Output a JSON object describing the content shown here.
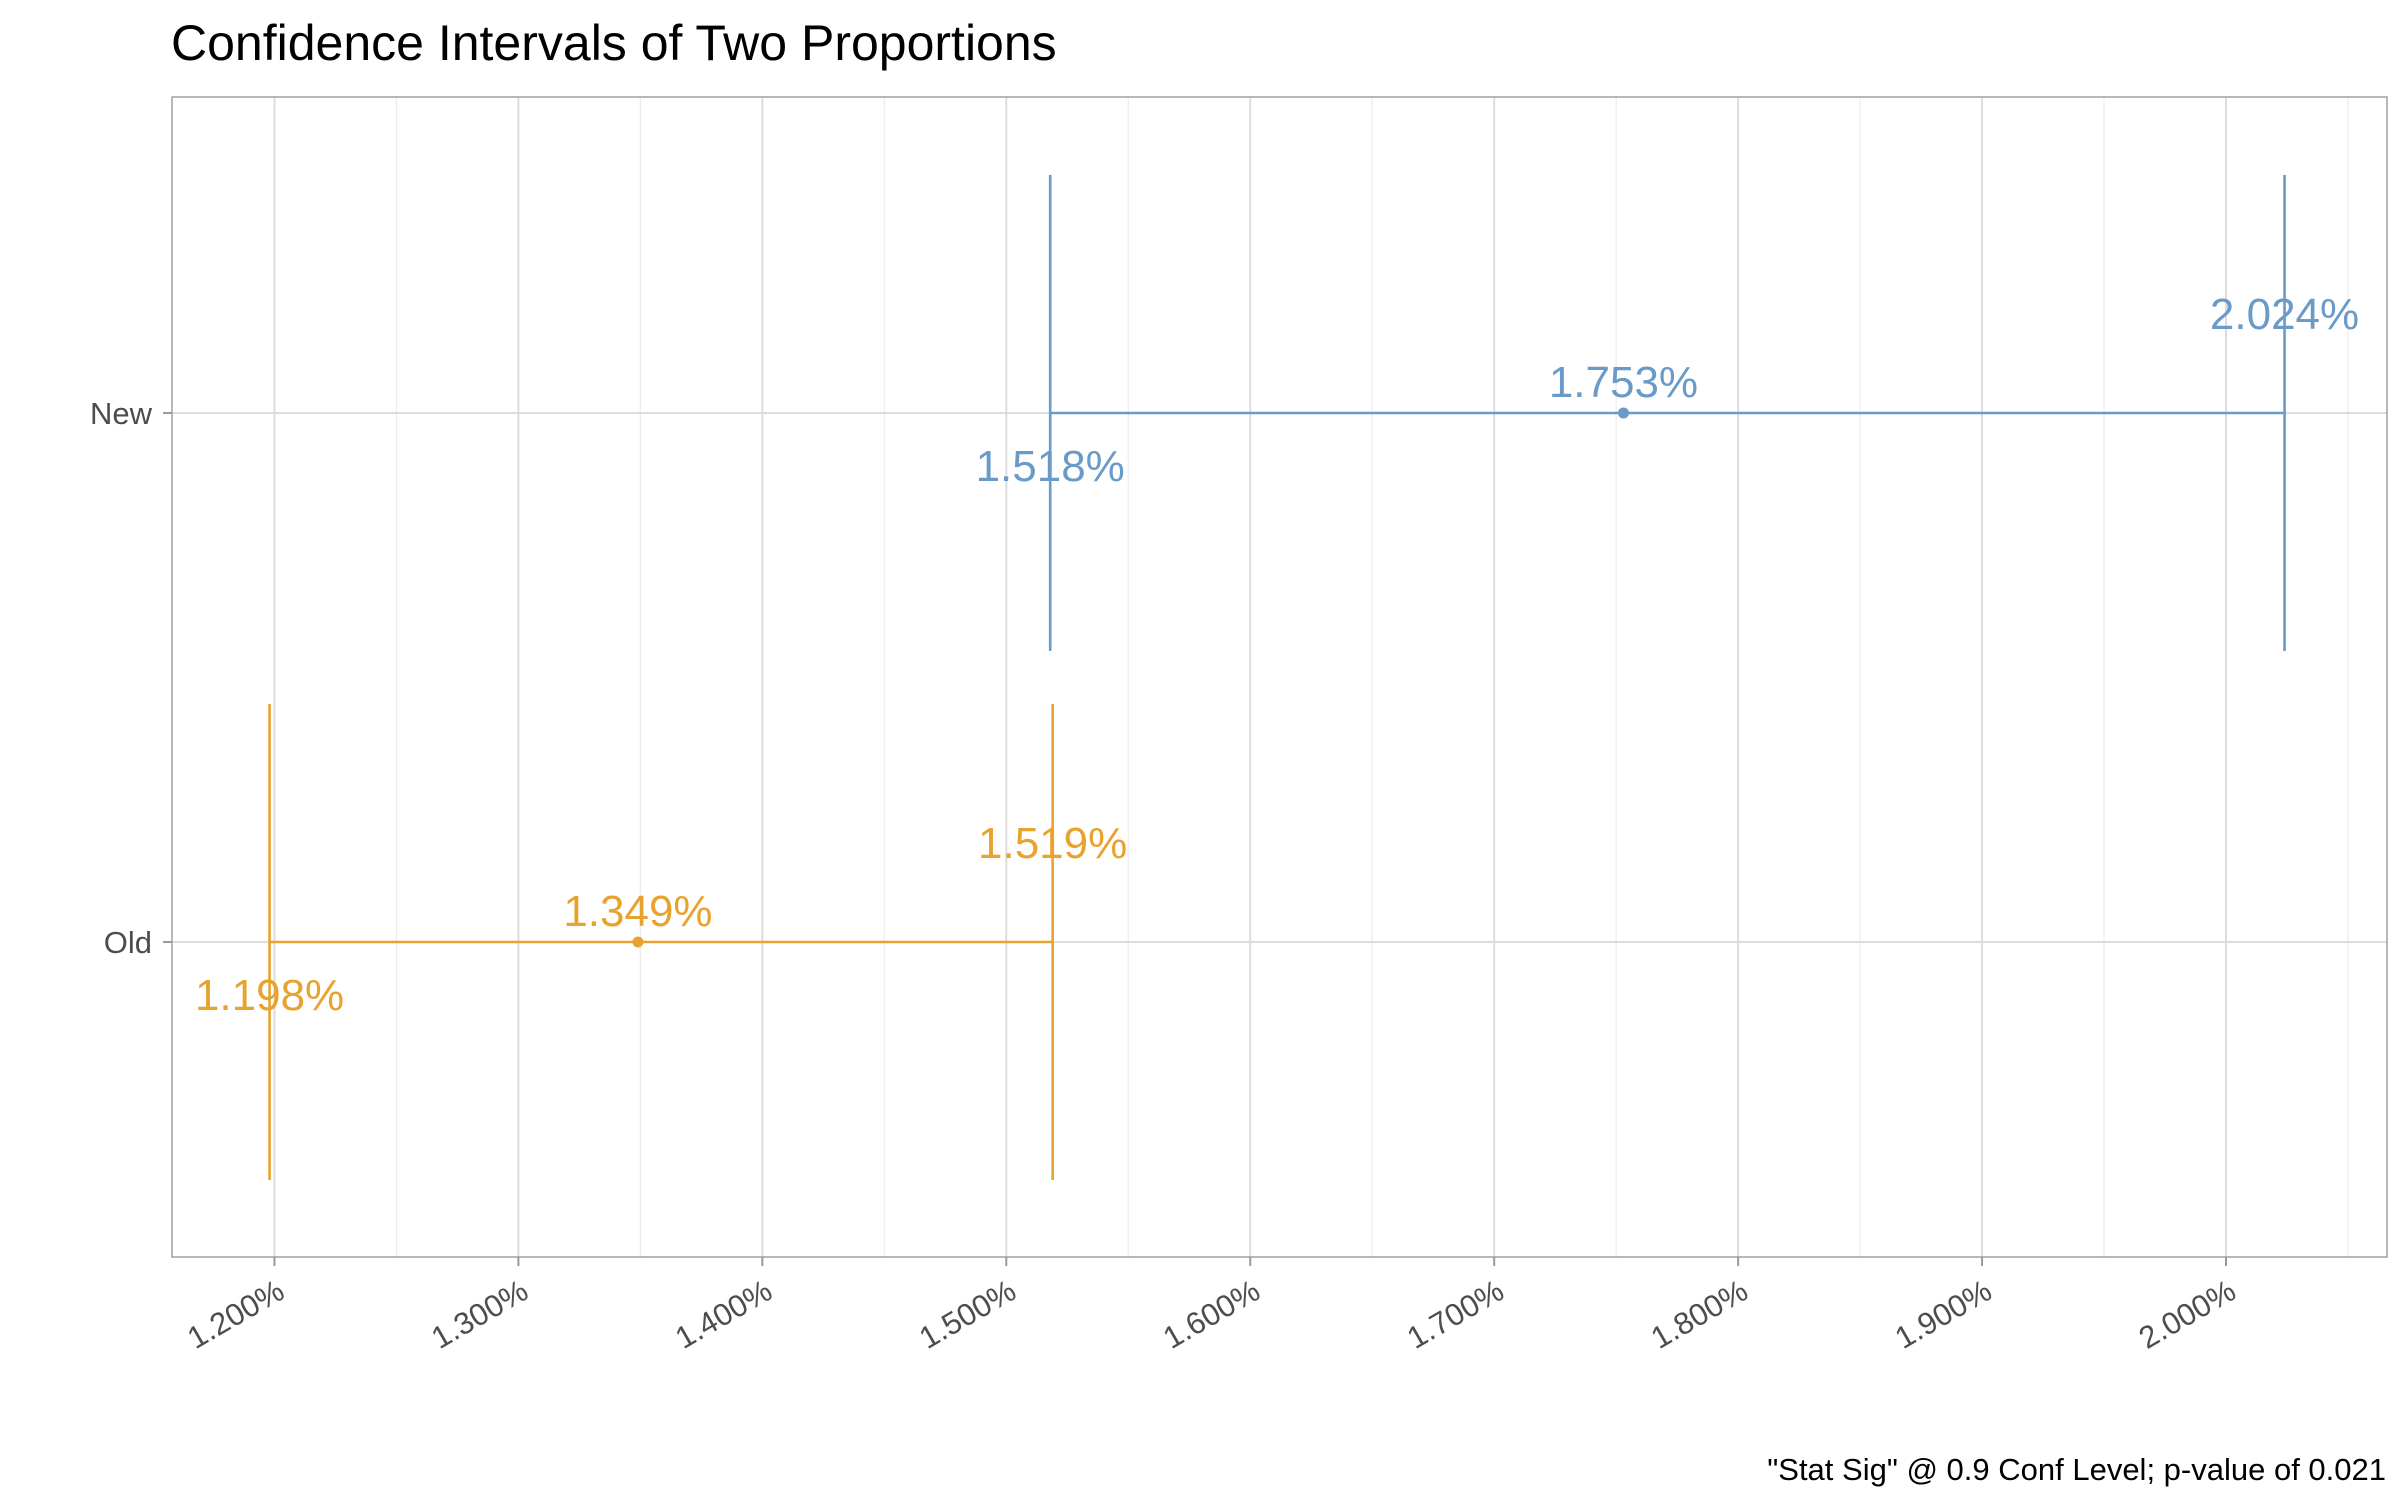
{
  "chart_data": {
    "type": "errorbar",
    "title": "Confidence Intervals of Two Proportions",
    "caption": "\"Stat Sig\" @ 0.9 Conf Level; p-value of 0.021",
    "xlabel": "",
    "ylabel": "",
    "categories": [
      "Old",
      "New"
    ],
    "x_ticks": [
      1.2,
      1.3,
      1.4,
      1.5,
      1.6,
      1.7,
      1.8,
      1.9,
      2.0
    ],
    "x_tick_labels": [
      "1.200%",
      "1.300%",
      "1.400%",
      "1.500%",
      "1.600%",
      "1.700%",
      "1.800%",
      "1.900%",
      "2.000%"
    ],
    "xlim": [
      1.158,
      2.066
    ],
    "grid": true,
    "legend": "none",
    "series": [
      {
        "category": "New",
        "estimate": 1.753,
        "lower": 1.518,
        "upper": 2.024,
        "estimate_label": "1.753%",
        "lower_label": "1.518%",
        "upper_label": "2.024%",
        "color": "#6a9ac8"
      },
      {
        "category": "Old",
        "estimate": 1.349,
        "lower": 1.198,
        "upper": 1.519,
        "estimate_label": "1.349%",
        "lower_label": "1.198%",
        "upper_label": "1.519%",
        "color": "#e8a22e"
      }
    ]
  }
}
